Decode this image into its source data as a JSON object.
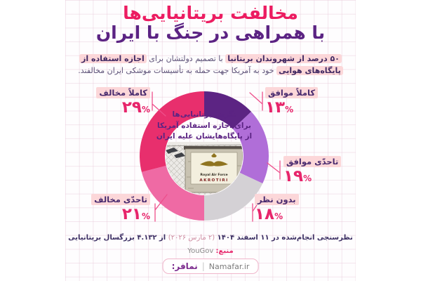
{
  "theme": {
    "accent_pink": "#ec1c61",
    "accent_purple": "#5b2383",
    "highlight_bg": "#fcd7d9",
    "percent_pink": "#e7256b",
    "connector_pink": "#ee4f8b"
  },
  "title": {
    "line1": "مخالفت بریتانیایی‌ها",
    "line2": "با همراهی در جنگ با ایران"
  },
  "description": {
    "segments": [
      {
        "text": "۵۰ درصد از شهروندان بریتانیا",
        "highlight": true
      },
      {
        "text": " با تصمیم دولتشان برای ",
        "highlight": false
      },
      {
        "text": "اجازه استفاده از",
        "highlight": true
      },
      {
        "text": " ",
        "highlight": false
      },
      {
        "text": "پایگاه‌های هوایی",
        "highlight": true
      },
      {
        "text": " خود به آمریکا جهت حمله به تأسیسات موشکی ایران مخالفند.",
        "highlight": false
      }
    ]
  },
  "chart_data": {
    "type": "pie",
    "style": "donut",
    "title": "نگرش برتانیایی‌ها برای اجازه استفاده آمریکا از پایگاه‌هایشان علیه ایران",
    "center_lines": [
      "نگرش برتانیایی‌ها",
      "برای اجازه استفاده آمریکا",
      "از پایگاه‌هایشان علیه ایران"
    ],
    "start_angle_deg": 0,
    "direction": "clockwise",
    "series": [
      {
        "label": "کاملاً موافق",
        "value": 13,
        "value_fa": "۱۳",
        "color": "#5c2483"
      },
      {
        "label": "تاحدّی موافق",
        "value": 19,
        "value_fa": "۱۹",
        "color": "#b06ed8"
      },
      {
        "label": "بدون نظر",
        "value": 18,
        "value_fa": "۱۸",
        "color": "#d4d1d5"
      },
      {
        "label": "تاحدّی مخالف",
        "value": 21,
        "value_fa": "۲۱",
        "color": "#ef6aa4"
      },
      {
        "label": "کاملاً مخالف",
        "value": 29,
        "value_fa": "۲۹",
        "color": "#e82f6d"
      }
    ]
  },
  "center_image": {
    "caption_line1": "Royal Air Force",
    "caption_line2": "AKROTIRI"
  },
  "footer": {
    "poll_info_main": "نظرسنجی انجام‌شده در ۱۱ اسفند ۱۴۰۴ ",
    "poll_info_paren": "(۲ مارس ۲۰۲۶)",
    "poll_info_rest": " از ۴.۱۳۲ بزرگسال بریتانیایی",
    "source_label": "منبع:",
    "source_value": "YouGov",
    "brand_fa": "نمافر:",
    "brand_sep": "|",
    "brand_en": "Namafar.ir"
  }
}
